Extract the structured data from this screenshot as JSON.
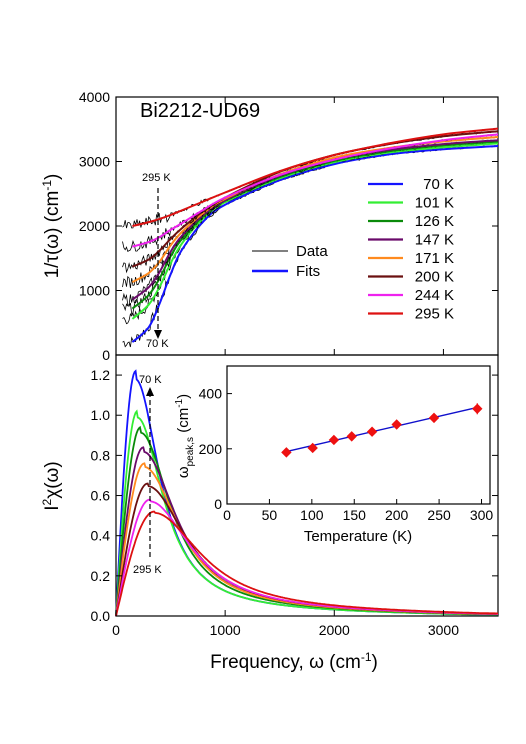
{
  "chart_data": [
    {
      "type": "line",
      "panel": "top",
      "title": "Bi2212-UD69",
      "xlabel": "",
      "ylabel": "1/τ(ω) (cm",
      "ylabel_sup": "-1",
      "ylabel_close": ")",
      "xlim": [
        0,
        3500
      ],
      "ylim": [
        0,
        4000
      ],
      "xticks": [
        0,
        1000,
        2000,
        3000
      ],
      "yticks": [
        "0",
        "1000",
        "2000",
        "3000",
        "4000"
      ],
      "ytick_values": [
        0,
        1000,
        2000,
        3000,
        4000
      ],
      "annotations": {
        "top_temp": "295 K",
        "bottom_temp": "70 K"
      },
      "legend_style": {
        "data": "Data",
        "fits": "Fits"
      },
      "series": [
        {
          "name": "70 K",
          "color": "#1414ff",
          "x": [
            150,
            300,
            400,
            500,
            600,
            800,
            1000,
            1500,
            2000,
            2500,
            3000,
            3500
          ],
          "values": [
            200,
            430,
            800,
            1250,
            1620,
            2070,
            2330,
            2710,
            2960,
            3110,
            3190,
            3240
          ]
        },
        {
          "name": "101 K",
          "color": "#33ee33",
          "x": [
            150,
            300,
            400,
            500,
            600,
            800,
            1000,
            1500,
            2000,
            2500,
            3000,
            3500
          ],
          "values": [
            560,
            780,
            1060,
            1420,
            1720,
            2120,
            2370,
            2740,
            2990,
            3140,
            3220,
            3280
          ]
        },
        {
          "name": "126 K",
          "color": "#0a8a0a",
          "x": [
            150,
            300,
            400,
            500,
            600,
            800,
            1000,
            1500,
            2000,
            2500,
            3000,
            3500
          ],
          "values": [
            720,
            930,
            1190,
            1530,
            1790,
            2150,
            2390,
            2760,
            3010,
            3160,
            3250,
            3310
          ]
        },
        {
          "name": "147 K",
          "color": "#6a0a6a",
          "x": [
            150,
            300,
            400,
            500,
            600,
            800,
            1000,
            1500,
            2000,
            2500,
            3000,
            3500
          ],
          "values": [
            860,
            1050,
            1290,
            1600,
            1840,
            2170,
            2400,
            2780,
            3030,
            3180,
            3270,
            3330
          ]
        },
        {
          "name": "171 K",
          "color": "#ff8a1e",
          "x": [
            150,
            300,
            400,
            500,
            600,
            800,
            1000,
            1500,
            2000,
            2500,
            3000,
            3500
          ],
          "values": [
            1130,
            1270,
            1450,
            1700,
            1900,
            2200,
            2420,
            2800,
            3060,
            3210,
            3310,
            3380
          ]
        },
        {
          "name": "200 K",
          "color": "#6b1010",
          "x": [
            150,
            300,
            400,
            500,
            600,
            800,
            1000,
            1500,
            2000,
            2500,
            3000,
            3500
          ],
          "values": [
            1370,
            1480,
            1620,
            1800,
            1960,
            2230,
            2440,
            2840,
            3100,
            3270,
            3390,
            3470
          ]
        },
        {
          "name": "244 K",
          "color": "#ee22ee",
          "x": [
            150,
            300,
            400,
            500,
            600,
            800,
            1000,
            1500,
            2000,
            2500,
            3000,
            3500
          ],
          "values": [
            1680,
            1750,
            1830,
            1940,
            2040,
            2250,
            2440,
            2790,
            3030,
            3200,
            3330,
            3420
          ]
        },
        {
          "name": "295 K",
          "color": "#dd1111",
          "x": [
            150,
            300,
            400,
            500,
            600,
            800,
            1000,
            1500,
            2000,
            2500,
            3000,
            3500
          ],
          "values": [
            2000,
            2060,
            2110,
            2170,
            2240,
            2380,
            2520,
            2850,
            3100,
            3280,
            3420,
            3510
          ]
        }
      ]
    },
    {
      "type": "line",
      "panel": "bottom",
      "xlabel": "Frequency, ω  (cm",
      "xlabel_sup": "-1",
      "xlabel_close": ")",
      "ylabel": "I",
      "ylabel_sup": "2",
      "ylabel_rest": "χ(ω)",
      "xlim": [
        0,
        3500
      ],
      "ylim": [
        0,
        1.3
      ],
      "xticks": [
        0,
        1000,
        2000,
        3000
      ],
      "yticks": [
        "0.0",
        "0.2",
        "0.4",
        "0.6",
        "0.8",
        "1.0",
        "1.2"
      ],
      "ytick_values": [
        0,
        0.2,
        0.4,
        0.6,
        0.8,
        1.0,
        1.2
      ],
      "annotations": {
        "top_temp": "70 K",
        "bottom_temp": "295 K"
      },
      "series": [
        {
          "name": "70 K",
          "color": "#1414ff",
          "peak_x": 180,
          "peak_y": 1.22
        },
        {
          "name": "101 K",
          "color": "#33ee33",
          "peak_x": 195,
          "peak_y": 1.02
        },
        {
          "name": "126 K",
          "color": "#0a8a0a",
          "peak_x": 225,
          "peak_y": 0.94
        },
        {
          "name": "147 K",
          "color": "#6a0a6a",
          "peak_x": 250,
          "peak_y": 0.84
        },
        {
          "name": "171 K",
          "color": "#ff8a1e",
          "peak_x": 260,
          "peak_y": 0.76
        },
        {
          "name": "200 K",
          "color": "#6b1010",
          "peak_x": 290,
          "peak_y": 0.66
        },
        {
          "name": "244 K",
          "color": "#ee22ee",
          "peak_x": 310,
          "peak_y": 0.58
        },
        {
          "name": "295 K",
          "color": "#dd1111",
          "peak_x": 350,
          "peak_y": 0.52
        }
      ]
    },
    {
      "type": "scatter",
      "panel": "inset",
      "xlabel": "Temperature (K)",
      "ylabel": "ω",
      "ylabel_sub": "peak,s",
      "ylabel_unit": " (cm",
      "ylabel_sup": "-1",
      "ylabel_close": ")",
      "xlim": [
        0,
        310
      ],
      "ylim": [
        0,
        500
      ],
      "xticks": [
        "0",
        "50",
        "100",
        "150",
        "200",
        "250",
        "300"
      ],
      "xtick_values": [
        0,
        50,
        100,
        150,
        200,
        250,
        300
      ],
      "yticks": [
        "0",
        "200",
        "400"
      ],
      "ytick_values": [
        0,
        200,
        400
      ],
      "x": [
        70,
        101,
        126,
        147,
        171,
        200,
        244,
        295
      ],
      "values": [
        187,
        203,
        232,
        245,
        262,
        288,
        312,
        345
      ],
      "errors": [
        8,
        8,
        10,
        10,
        10,
        12,
        15,
        20
      ],
      "fit": {
        "x": [
          70,
          295
        ],
        "values": [
          190,
          350
        ]
      },
      "marker_color": "#ee1111",
      "fit_color": "#1010cc"
    }
  ]
}
